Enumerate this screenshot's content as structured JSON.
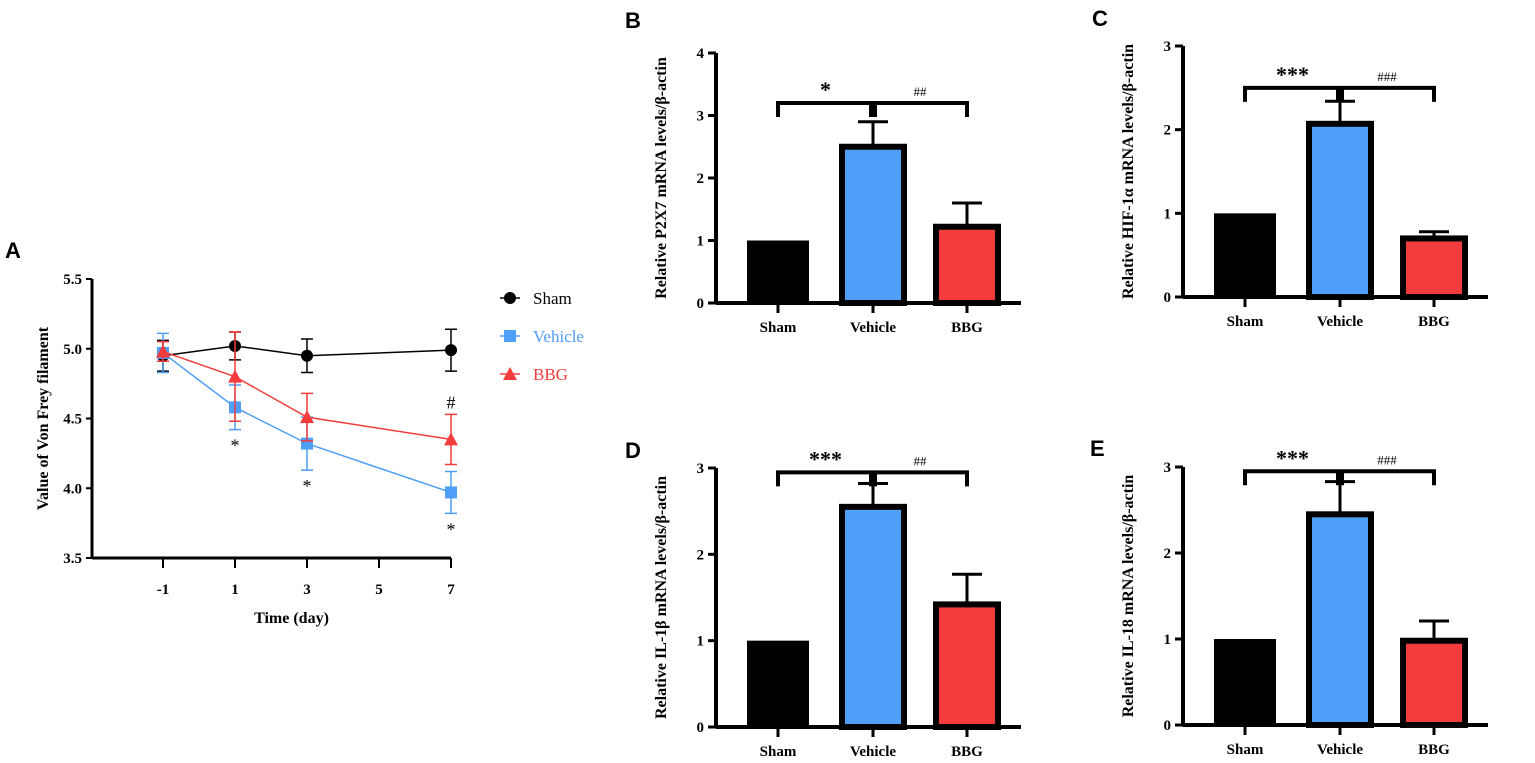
{
  "colors": {
    "sham": "#000000",
    "vehicle": "#4f9ef8",
    "bbg": "#f43c3c"
  },
  "chart_data": [
    {
      "panel": "A",
      "type": "line",
      "xlabel": "Time (day)",
      "ylabel": "Value of Von Frey filament",
      "x": [
        -1,
        1,
        3,
        5,
        7
      ],
      "x_ticks": [
        "-1",
        "1",
        "3",
        "5",
        "7"
      ],
      "ylim": [
        3.5,
        5.5
      ],
      "y_ticks": [
        "3.5",
        "4.0",
        "4.5",
        "5.0",
        "5.5"
      ],
      "legend_position": "right",
      "series": [
        {
          "name": "Sham",
          "x": [
            -1,
            1,
            3,
            7
          ],
          "values": [
            4.95,
            5.02,
            4.95,
            4.99
          ],
          "errors": [
            0.11,
            0.1,
            0.12,
            0.15
          ]
        },
        {
          "name": "Vehicle",
          "x": [
            -1,
            1,
            3,
            7
          ],
          "values": [
            4.97,
            4.58,
            4.32,
            3.97
          ],
          "errors": [
            0.14,
            0.16,
            0.19,
            0.15
          ]
        },
        {
          "name": "BBG",
          "x": [
            -1,
            1,
            3,
            7
          ],
          "values": [
            4.98,
            4.8,
            4.51,
            4.35
          ],
          "errors": [
            0.07,
            0.32,
            0.17,
            0.18
          ]
        }
      ],
      "annotations": [
        {
          "text": "*",
          "x": 1,
          "series": "Vehicle"
        },
        {
          "text": "*",
          "x": 3,
          "series": "Vehicle"
        },
        {
          "text": "*",
          "x": 7,
          "series": "Vehicle"
        },
        {
          "text": "#",
          "x": 7,
          "series": "BBG"
        }
      ]
    },
    {
      "panel": "B",
      "type": "bar",
      "ylabel": "Relative P2X7 mRNA levels/β-actin",
      "categories": [
        "Sham",
        "Vehicle",
        "BBG"
      ],
      "values": [
        1,
        2.5,
        1.22
      ],
      "errors": [
        0,
        0.4,
        0.38
      ],
      "ylim": [
        0,
        4
      ],
      "y_ticks": [
        "0",
        "1",
        "2",
        "3",
        "4"
      ],
      "sig": [
        "*",
        "##"
      ],
      "bracket": 3.2
    },
    {
      "panel": "C",
      "type": "bar",
      "ylabel": "Relative HIF-1α mRNA levels/β-actin",
      "categories": [
        "Sham",
        "Vehicle",
        "BBG"
      ],
      "values": [
        1,
        2.07,
        0.7
      ],
      "errors": [
        0,
        0.27,
        0.08
      ],
      "ylim": [
        0,
        3
      ],
      "y_ticks": [
        "0",
        "1",
        "2",
        "3"
      ],
      "sig": [
        "***",
        "###"
      ],
      "bracket": 2.5
    },
    {
      "panel": "D",
      "type": "bar",
      "ylabel": "Relative IL-1β mRNA levels/β-actin",
      "categories": [
        "Sham",
        "Vehicle",
        "BBG"
      ],
      "values": [
        1,
        2.55,
        1.42
      ],
      "errors": [
        0,
        0.27,
        0.35
      ],
      "ylim": [
        0,
        3
      ],
      "y_ticks": [
        "0",
        "1",
        "2",
        "3"
      ],
      "sig": [
        "***",
        "##"
      ],
      "bracket": 2.95
    },
    {
      "panel": "E",
      "type": "bar",
      "ylabel": "Relative IL-18 mRNA levels/β-actin",
      "categories": [
        "Sham",
        "Vehicle",
        "BBG"
      ],
      "values": [
        1,
        2.45,
        0.98
      ],
      "errors": [
        0,
        0.38,
        0.23
      ],
      "ylim": [
        0,
        3
      ],
      "y_ticks": [
        "0",
        "1",
        "2",
        "3"
      ],
      "sig": [
        "***",
        "###"
      ],
      "bracket": 2.95
    }
  ]
}
